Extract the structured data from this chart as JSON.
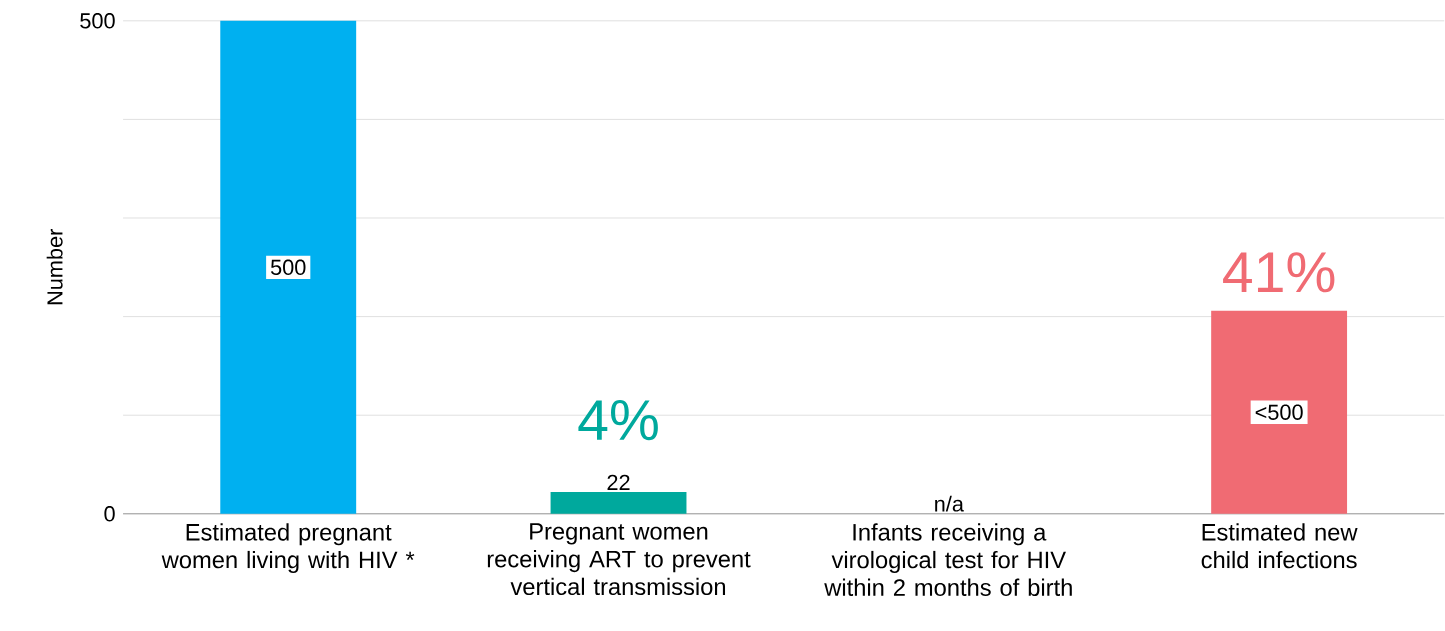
{
  "chart_data": {
    "type": "bar",
    "categories": [
      "Estimated pregnant women living with HIV *",
      "Pregnant women receiving ART to prevent vertical transmission",
      "Infants receiving a virological test for HIV within 2 months of birth",
      "Estimated new child infections"
    ],
    "values": [
      500,
      22,
      null,
      206
    ],
    "colors": [
      "#00b0f0",
      "#00a99d",
      null,
      "#f06b73"
    ],
    "value_labels": [
      "500",
      "22",
      "n/a",
      "<500"
    ],
    "annotations": [
      "4%",
      "41%"
    ],
    "ylabel": "Number",
    "ylim": [
      0,
      500
    ],
    "yticks": [
      0,
      {
        "value": 100,
        "label": null
      },
      {
        "value": 200,
        "label": null
      },
      {
        "value": 300,
        "label": null
      },
      {
        "value": 400,
        "label": null
      },
      500
    ],
    "grid": "y"
  }
}
